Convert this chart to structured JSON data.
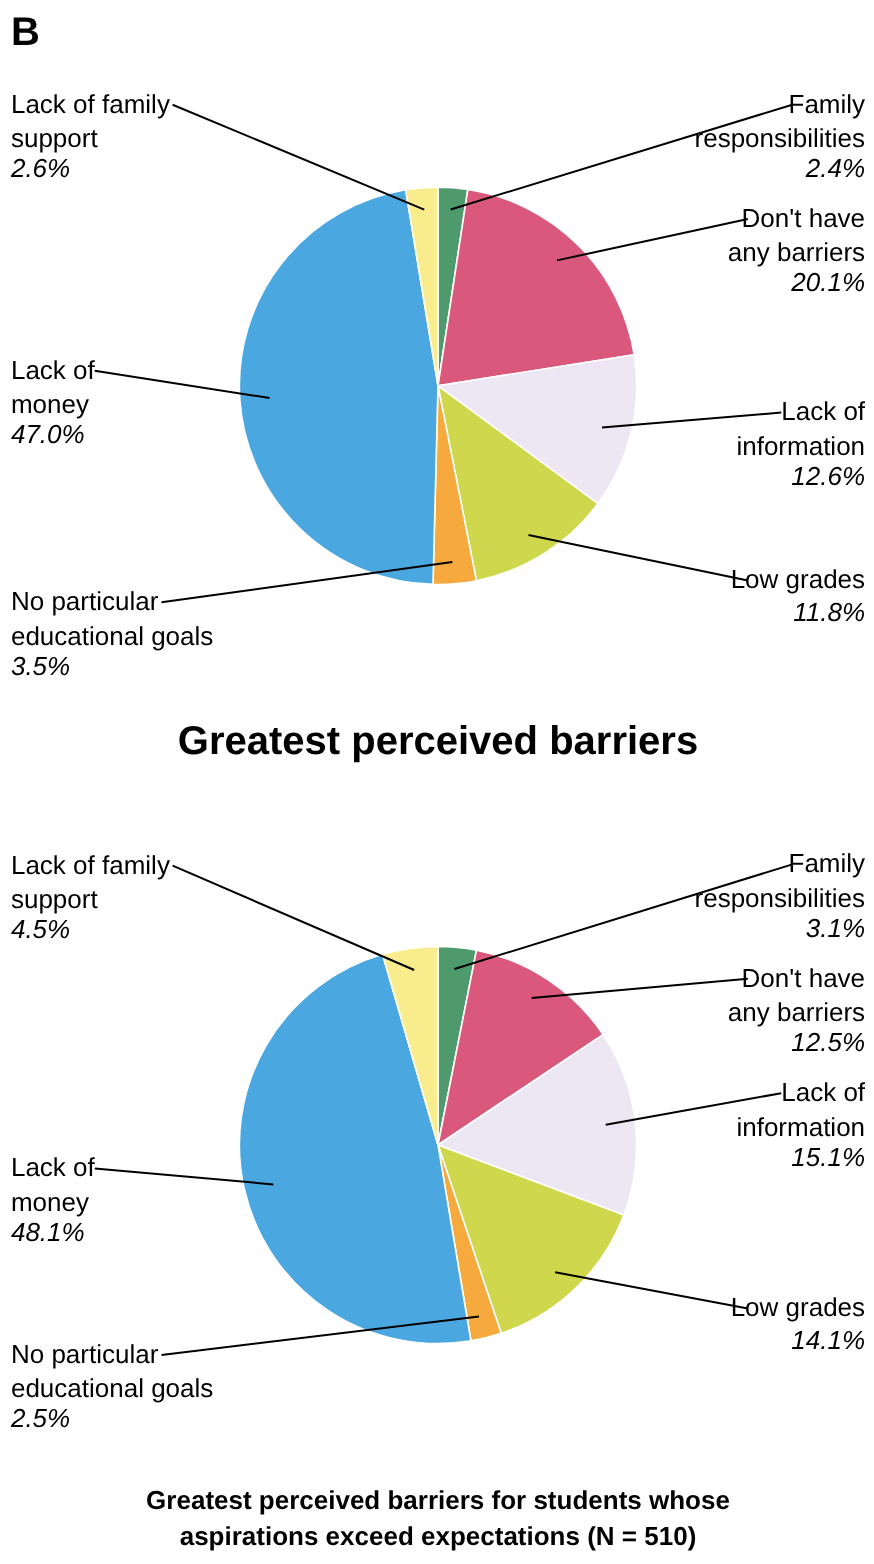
{
  "chart_data": [
    {
      "type": "pie",
      "annotations": [
        "B"
      ],
      "title": "Greatest perceived barriers",
      "categories": [
        "Family\nresponsibilities",
        "Don't have\nany barriers",
        "Lack of\ninformation",
        "Low grades",
        "No particular\neducational goals",
        "Lack of\nmoney",
        "Lack of family\nsupport"
      ],
      "values": [
        2.4,
        20.1,
        12.6,
        11.8,
        3.5,
        47.0,
        2.6
      ],
      "value_labels": [
        "2.4%",
        "20.1%",
        "12.6%",
        "11.8%",
        "3.5%",
        "47.0%",
        "2.6%"
      ],
      "colors": [
        "#4f9a6c",
        "#d9587c",
        "#ede6f3",
        "#cfd84c",
        "#f6a93c",
        "#4aa7e0",
        "#f8ec8c"
      ]
    },
    {
      "type": "pie",
      "title": "Greatest perceived barriers for students whose\naspirations exceed expectations (N = 510)",
      "categories": [
        "Family\nresponsibilities",
        "Don't have\nany barriers",
        "Lack of\ninformation",
        "Low grades",
        "No particular\neducational goals",
        "Lack of\nmoney",
        "Lack of family\nsupport"
      ],
      "values": [
        3.1,
        12.5,
        15.1,
        14.1,
        2.5,
        48.1,
        4.5
      ],
      "value_labels": [
        "3.1%",
        "12.5%",
        "15.1%",
        "14.1%",
        "2.5%",
        "48.1%",
        "4.5%"
      ],
      "colors": [
        "#4f9a6c",
        "#d9587c",
        "#ede6f3",
        "#cfd84c",
        "#f6a93c",
        "#4aa7e0",
        "#f8ec8c"
      ]
    }
  ]
}
